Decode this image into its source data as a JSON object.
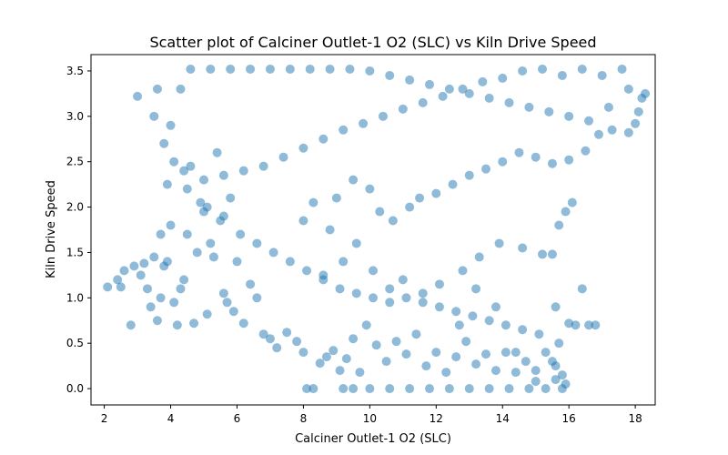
{
  "chart_data": {
    "type": "scatter",
    "title": "Scatter plot of Calciner Outlet-1 O2 (SLC) vs Kiln Drive Speed",
    "xlabel": "Calciner Outlet-1 O2 (SLC)",
    "ylabel": "Kiln Drive Speed",
    "xlim": [
      1.6,
      18.6
    ],
    "ylim": [
      -0.18,
      3.68
    ],
    "xticks": [
      2,
      4,
      6,
      8,
      10,
      12,
      14,
      16,
      18
    ],
    "xtick_labels": [
      "2",
      "4",
      "6",
      "8",
      "10",
      "12",
      "14",
      "16",
      "18"
    ],
    "yticks": [
      0.0,
      0.5,
      1.0,
      1.5,
      2.0,
      2.5,
      3.0,
      3.5
    ],
    "ytick_labels": [
      "0.0",
      "0.5",
      "1.0",
      "1.5",
      "2.0",
      "2.5",
      "3.0",
      "3.5"
    ],
    "grid": false,
    "marker": {
      "color": "#1f77b4",
      "alpha": 0.5
    },
    "series": [
      {
        "points": [
          [
            2.1,
            1.12
          ],
          [
            2.4,
            1.2
          ],
          [
            2.5,
            1.12
          ],
          [
            2.6,
            1.3
          ],
          [
            2.8,
            0.7
          ],
          [
            2.9,
            1.35
          ],
          [
            3.0,
            3.22
          ],
          [
            3.1,
            1.25
          ],
          [
            3.2,
            1.38
          ],
          [
            3.3,
            1.1
          ],
          [
            3.4,
            0.9
          ],
          [
            3.5,
            1.45
          ],
          [
            3.6,
            0.75
          ],
          [
            3.7,
            1.0
          ],
          [
            3.7,
            1.7
          ],
          [
            3.8,
            1.35
          ],
          [
            3.9,
            1.4
          ],
          [
            3.9,
            2.25
          ],
          [
            4.0,
            1.8
          ],
          [
            4.1,
            0.95
          ],
          [
            4.2,
            0.7
          ],
          [
            4.3,
            1.1
          ],
          [
            4.4,
            1.2
          ],
          [
            4.5,
            1.7
          ],
          [
            4.6,
            2.45
          ],
          [
            4.7,
            0.72
          ],
          [
            4.8,
            1.5
          ],
          [
            4.9,
            2.05
          ],
          [
            5.0,
            1.95
          ],
          [
            5.1,
            0.82
          ],
          [
            5.2,
            1.6
          ],
          [
            5.3,
            1.45
          ],
          [
            5.4,
            2.6
          ],
          [
            5.5,
            1.85
          ],
          [
            5.6,
            1.05
          ],
          [
            5.7,
            0.95
          ],
          [
            5.8,
            2.1
          ],
          [
            5.9,
            0.85
          ],
          [
            6.0,
            1.4
          ],
          [
            6.2,
            0.72
          ],
          [
            6.4,
            1.15
          ],
          [
            6.6,
            1.0
          ],
          [
            6.8,
            0.6
          ],
          [
            7.0,
            0.55
          ],
          [
            7.2,
            0.45
          ],
          [
            7.5,
            0.62
          ],
          [
            7.8,
            0.52
          ],
          [
            8.0,
            0.4
          ],
          [
            8.1,
            0.0
          ],
          [
            8.3,
            0.0
          ],
          [
            8.5,
            0.28
          ],
          [
            8.7,
            0.35
          ],
          [
            8.9,
            0.42
          ],
          [
            9.1,
            0.2
          ],
          [
            9.3,
            0.33
          ],
          [
            9.5,
            0.55
          ],
          [
            9.7,
            0.18
          ],
          [
            9.9,
            0.7
          ],
          [
            10.2,
            0.48
          ],
          [
            10.5,
            0.3
          ],
          [
            10.8,
            0.52
          ],
          [
            11.1,
            0.38
          ],
          [
            11.4,
            0.6
          ],
          [
            11.7,
            0.25
          ],
          [
            12.0,
            0.4
          ],
          [
            12.3,
            0.18
          ],
          [
            12.6,
            0.35
          ],
          [
            12.9,
            0.52
          ],
          [
            13.2,
            0.27
          ],
          [
            13.5,
            0.38
          ],
          [
            13.8,
            0.2
          ],
          [
            14.1,
            0.4
          ],
          [
            14.4,
            0.18
          ],
          [
            14.7,
            0.3
          ],
          [
            15.0,
            0.2
          ],
          [
            15.3,
            0.4
          ],
          [
            15.6,
            0.25
          ],
          [
            15.8,
            0.15
          ],
          [
            15.9,
            0.05
          ],
          [
            16.0,
            0.72
          ],
          [
            16.2,
            0.7
          ],
          [
            16.6,
            0.7
          ],
          [
            16.8,
            0.7
          ],
          [
            16.4,
            1.1
          ],
          [
            15.7,
            1.8
          ],
          [
            15.9,
            1.95
          ],
          [
            16.1,
            2.05
          ],
          [
            15.5,
            1.48
          ],
          [
            15.2,
            1.48
          ],
          [
            14.6,
            1.55
          ],
          [
            13.9,
            1.6
          ],
          [
            13.3,
            1.45
          ],
          [
            12.8,
            1.3
          ],
          [
            12.1,
            1.15
          ],
          [
            11.6,
            1.05
          ],
          [
            11.0,
            1.2
          ],
          [
            10.6,
            0.95
          ],
          [
            10.1,
            1.3
          ],
          [
            9.6,
            1.6
          ],
          [
            9.2,
            1.4
          ],
          [
            8.8,
            1.75
          ],
          [
            8.6,
            1.25
          ],
          [
            8.3,
            2.05
          ],
          [
            8.0,
            1.85
          ],
          [
            9.0,
            2.1
          ],
          [
            9.5,
            2.3
          ],
          [
            10.0,
            2.2
          ],
          [
            10.3,
            1.95
          ],
          [
            10.7,
            1.85
          ],
          [
            11.2,
            2.0
          ],
          [
            11.5,
            2.1
          ],
          [
            12.0,
            2.15
          ],
          [
            12.5,
            2.25
          ],
          [
            13.0,
            2.35
          ],
          [
            13.5,
            2.42
          ],
          [
            14.0,
            2.5
          ],
          [
            14.5,
            2.6
          ],
          [
            15.0,
            2.55
          ],
          [
            15.5,
            2.48
          ],
          [
            16.0,
            2.52
          ],
          [
            16.5,
            2.62
          ],
          [
            16.9,
            2.8
          ],
          [
            17.3,
            2.85
          ],
          [
            17.8,
            2.82
          ],
          [
            18.0,
            2.92
          ],
          [
            18.1,
            3.05
          ],
          [
            18.2,
            3.2
          ],
          [
            18.3,
            3.25
          ],
          [
            17.6,
            3.52
          ],
          [
            17.0,
            3.45
          ],
          [
            16.4,
            3.52
          ],
          [
            15.8,
            3.45
          ],
          [
            15.2,
            3.52
          ],
          [
            14.6,
            3.5
          ],
          [
            14.0,
            3.42
          ],
          [
            13.4,
            3.38
          ],
          [
            12.8,
            3.3
          ],
          [
            12.2,
            3.22
          ],
          [
            11.6,
            3.15
          ],
          [
            11.0,
            3.08
          ],
          [
            10.4,
            3.0
          ],
          [
            9.8,
            2.92
          ],
          [
            9.2,
            2.85
          ],
          [
            8.6,
            2.75
          ],
          [
            8.0,
            2.65
          ],
          [
            7.4,
            2.55
          ],
          [
            6.8,
            2.45
          ],
          [
            6.2,
            2.4
          ],
          [
            5.6,
            2.35
          ],
          [
            5.0,
            2.3
          ],
          [
            4.4,
            2.4
          ],
          [
            4.0,
            2.9
          ],
          [
            4.3,
            3.3
          ],
          [
            4.6,
            3.52
          ],
          [
            5.2,
            3.52
          ],
          [
            5.8,
            3.52
          ],
          [
            6.4,
            3.52
          ],
          [
            7.0,
            3.52
          ],
          [
            7.6,
            3.52
          ],
          [
            8.2,
            3.52
          ],
          [
            8.8,
            3.52
          ],
          [
            9.4,
            3.52
          ],
          [
            10.0,
            3.5
          ],
          [
            10.6,
            3.45
          ],
          [
            11.2,
            3.4
          ],
          [
            11.8,
            3.35
          ],
          [
            12.4,
            3.3
          ],
          [
            13.0,
            3.25
          ],
          [
            13.6,
            3.2
          ],
          [
            14.2,
            3.15
          ],
          [
            14.8,
            3.1
          ],
          [
            15.4,
            3.05
          ],
          [
            16.0,
            3.0
          ],
          [
            16.6,
            2.95
          ],
          [
            17.2,
            3.1
          ],
          [
            17.8,
            3.3
          ],
          [
            3.6,
            3.3
          ],
          [
            3.5,
            3.0
          ],
          [
            3.8,
            2.7
          ],
          [
            4.1,
            2.5
          ],
          [
            4.5,
            2.2
          ],
          [
            5.1,
            2.0
          ],
          [
            5.6,
            1.9
          ],
          [
            6.1,
            1.7
          ],
          [
            6.6,
            1.6
          ],
          [
            7.1,
            1.5
          ],
          [
            7.6,
            1.4
          ],
          [
            8.1,
            1.3
          ],
          [
            8.6,
            1.2
          ],
          [
            9.1,
            1.1
          ],
          [
            9.6,
            1.05
          ],
          [
            10.1,
            1.0
          ],
          [
            10.6,
            1.1
          ],
          [
            11.1,
            1.0
          ],
          [
            11.6,
            0.95
          ],
          [
            12.1,
            0.9
          ],
          [
            12.6,
            0.85
          ],
          [
            13.1,
            0.8
          ],
          [
            13.6,
            0.75
          ],
          [
            14.1,
            0.7
          ],
          [
            14.6,
            0.65
          ],
          [
            15.1,
            0.6
          ],
          [
            15.6,
            0.9
          ],
          [
            15.7,
            0.5
          ],
          [
            15.5,
            0.3
          ],
          [
            15.3,
            0.0
          ],
          [
            14.8,
            0.0
          ],
          [
            14.2,
            0.0
          ],
          [
            13.6,
            0.0
          ],
          [
            13.0,
            0.0
          ],
          [
            12.4,
            0.0
          ],
          [
            11.8,
            0.0
          ],
          [
            11.2,
            0.0
          ],
          [
            10.6,
            0.0
          ],
          [
            10.0,
            0.0
          ],
          [
            9.5,
            0.0
          ],
          [
            9.2,
            0.0
          ],
          [
            15.8,
            0.0
          ],
          [
            15.6,
            0.1
          ],
          [
            15.0,
            0.08
          ],
          [
            14.4,
            0.4
          ],
          [
            13.8,
            0.9
          ],
          [
            13.2,
            1.1
          ],
          [
            12.7,
            0.7
          ]
        ]
      }
    ]
  }
}
